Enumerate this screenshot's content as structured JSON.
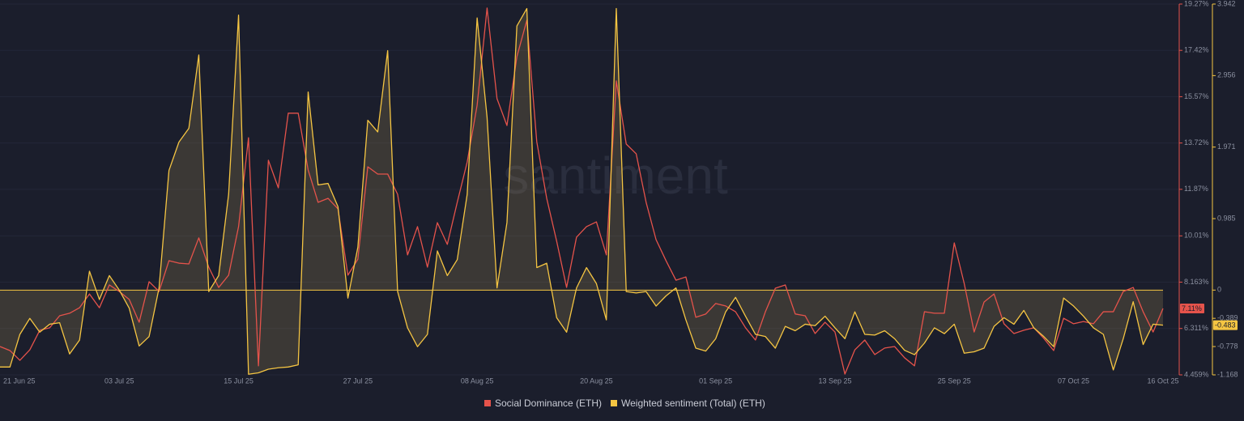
{
  "chart_data": {
    "type": "line",
    "watermark": "santiment",
    "categories": [
      "21 Jun 25",
      null,
      null,
      null,
      null,
      null,
      null,
      null,
      null,
      null,
      null,
      null,
      "03 Jul 25",
      null,
      null,
      null,
      null,
      null,
      null,
      null,
      null,
      null,
      null,
      null,
      "15 Jul 25",
      null,
      null,
      null,
      null,
      null,
      null,
      null,
      null,
      null,
      null,
      null,
      "27 Jul 25",
      null,
      null,
      null,
      null,
      null,
      null,
      null,
      null,
      null,
      null,
      null,
      "08 Aug 25",
      null,
      null,
      null,
      null,
      null,
      null,
      null,
      null,
      null,
      null,
      null,
      "20 Aug 25",
      null,
      null,
      null,
      null,
      null,
      null,
      null,
      null,
      null,
      null,
      null,
      "01 Sep 25",
      null,
      null,
      null,
      null,
      null,
      null,
      null,
      null,
      null,
      null,
      null,
      "13 Sep 25",
      null,
      null,
      null,
      null,
      null,
      null,
      null,
      null,
      null,
      null,
      null,
      "25 Sep 25",
      null,
      null,
      null,
      null,
      null,
      null,
      null,
      null,
      null,
      null,
      null,
      "07 Oct 25",
      null,
      null,
      null,
      null,
      null,
      null,
      null,
      null,
      "16 Oct 25"
    ],
    "series": [
      {
        "name": "Social Dominance (ETH)",
        "color": "#e5534b",
        "axis": "y",
        "end_label": "7.11%",
        "values": [
          5.59,
          5.43,
          5.04,
          5.46,
          6.24,
          6.34,
          6.82,
          6.92,
          7.14,
          7.69,
          7.14,
          8.05,
          7.79,
          7.47,
          6.56,
          8.18,
          7.79,
          9.02,
          8.92,
          8.89,
          9.93,
          8.76,
          7.95,
          8.44,
          10.38,
          13.93,
          4.82,
          13.03,
          11.93,
          14.91,
          14.91,
          12.64,
          11.35,
          11.51,
          11.09,
          8.44,
          9.08,
          12.77,
          12.48,
          12.48,
          11.67,
          9.25,
          10.38,
          8.76,
          10.54,
          9.67,
          11.35,
          12.96,
          15.23,
          19.11,
          15.49,
          14.42,
          17.17,
          18.62,
          13.77,
          11.51,
          9.8,
          7.95,
          9.96,
          10.38,
          10.57,
          9.25,
          16.2,
          13.68,
          13.29,
          11.35,
          9.86,
          9.02,
          8.24,
          8.37,
          6.76,
          6.89,
          7.31,
          7.21,
          6.98,
          6.34,
          5.85,
          6.98,
          7.92,
          8.05,
          6.89,
          6.82,
          6.11,
          6.56,
          6.17,
          4.49,
          5.46,
          5.85,
          5.27,
          5.53,
          5.59,
          5.14,
          4.82,
          6.98,
          6.92,
          6.92,
          9.73,
          8.11,
          6.17,
          7.37,
          7.69,
          6.5,
          6.11,
          6.24,
          6.34,
          5.92,
          5.43,
          6.72,
          6.5,
          6.59,
          6.5,
          6.98,
          6.98,
          7.79,
          7.95,
          6.98,
          6.17,
          7.11
        ]
      },
      {
        "name": "Weighted sentiment (Total) (ETH)",
        "color": "#f5c542",
        "axis": "y2",
        "end_label": "-0.483",
        "values": [
          -1.06,
          -1.06,
          -0.61,
          -0.39,
          -0.58,
          -0.47,
          -0.45,
          -0.88,
          -0.69,
          0.26,
          -0.13,
          0.2,
          0,
          -0.25,
          -0.77,
          -0.64,
          0.03,
          1.65,
          2.04,
          2.23,
          3.24,
          -0.02,
          0.2,
          1.32,
          3.79,
          -1.16,
          -1.14,
          -1.09,
          -1.07,
          -1.06,
          -1.03,
          2.73,
          1.45,
          1.47,
          1.15,
          -0.11,
          0.59,
          2.34,
          2.18,
          3.3,
          -0.02,
          -0.52,
          -0.78,
          -0.61,
          0.54,
          0.2,
          0.42,
          1.32,
          3.75,
          2.38,
          0.03,
          0.93,
          3.64,
          3.88,
          0.31,
          0.37,
          -0.38,
          -0.58,
          0.03,
          0.31,
          0.09,
          -0.41,
          3.88,
          -0.02,
          -0.04,
          -0.02,
          -0.22,
          -0.08,
          0.03,
          -0.41,
          -0.8,
          -0.84,
          -0.67,
          -0.3,
          -0.1,
          -0.36,
          -0.61,
          -0.64,
          -0.8,
          -0.5,
          -0.56,
          -0.47,
          -0.49,
          -0.36,
          -0.52,
          -0.67,
          -0.3,
          -0.61,
          -0.62,
          -0.56,
          -0.67,
          -0.83,
          -0.89,
          -0.73,
          -0.52,
          -0.6,
          -0.47,
          -0.87,
          -0.85,
          -0.8,
          -0.5,
          -0.38,
          -0.47,
          -0.28,
          -0.52,
          -0.64,
          -0.78,
          -0.11,
          -0.22,
          -0.36,
          -0.52,
          -0.61,
          -1.1,
          -0.67,
          -0.16,
          -0.75,
          -0.47,
          -0.483
        ]
      }
    ],
    "ylim": [
      4.459,
      19.27
    ],
    "yticks": [
      {
        "value": 4.459,
        "label": "4.459%"
      },
      {
        "value": 6.311,
        "label": "6.311%"
      },
      {
        "value": 8.163,
        "label": "8.163%"
      },
      {
        "value": 10.01,
        "label": "10.01%"
      },
      {
        "value": 11.87,
        "label": "11.87%"
      },
      {
        "value": 13.72,
        "label": "13.72%"
      },
      {
        "value": 15.57,
        "label": "15.57%"
      },
      {
        "value": 17.42,
        "label": "17.42%"
      },
      {
        "value": 19.27,
        "label": "19.27%"
      }
    ],
    "y2lim": [
      -1.168,
      3.942
    ],
    "y2ticks": [
      -1.168,
      -0.778,
      -0.389,
      0,
      0.985,
      1.971,
      2.956,
      3.942
    ],
    "grid": true
  }
}
